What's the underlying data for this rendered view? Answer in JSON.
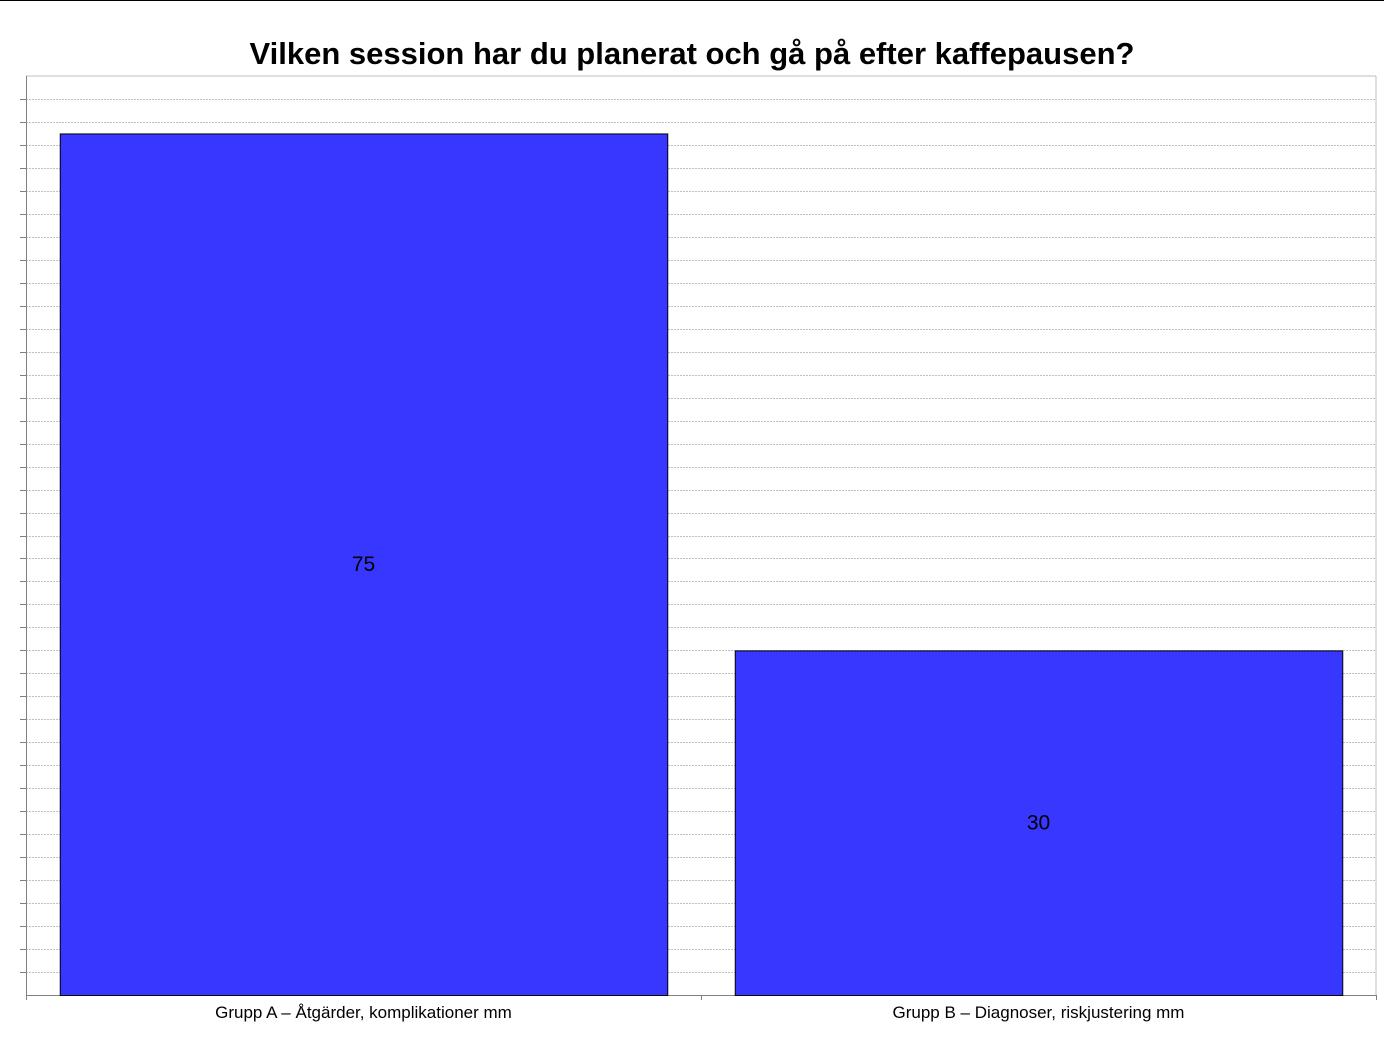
{
  "chart_data": {
    "type": "bar",
    "title": "Vilken session har du planerat och gå på efter kaffepausen?",
    "categories": [
      "Grupp A – Åtgärder, komplikationer mm",
      "Grupp B – Diagnoser, riskjustering mm"
    ],
    "values": [
      75,
      30
    ],
    "data_labels": [
      "75",
      "30"
    ],
    "xlabel": "",
    "ylabel": "",
    "ylim": [
      0,
      80
    ],
    "grid": true,
    "legend": "none",
    "colors": {
      "bar_fill": "#3737FF",
      "bar_stroke": "#000000",
      "gridline": "#BFBFBF",
      "axis": "#808080"
    }
  }
}
